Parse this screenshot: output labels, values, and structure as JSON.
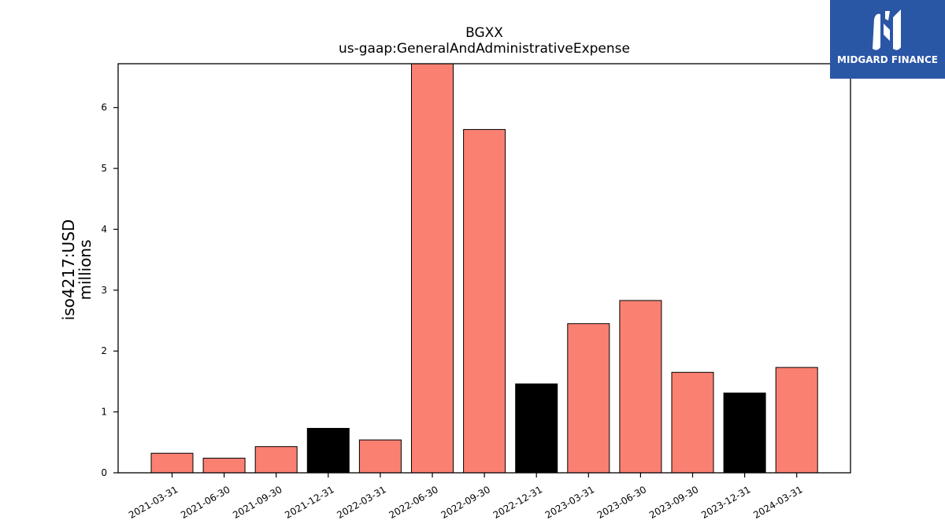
{
  "logo": {
    "text": "MIDGARD FINANCE"
  },
  "colors": {
    "default": "#fa8072",
    "highlight": "#000000",
    "axis": "#000000"
  },
  "chart_data": {
    "type": "bar",
    "title": "BGXX",
    "subtitle": "us-gaap:GeneralAndAdministrativeExpense",
    "ylabel": "iso4217:USD",
    "ylabel_unit": "millions",
    "xlabel": "",
    "categories": [
      "2021-03-31",
      "2021-06-30",
      "2021-09-30",
      "2021-12-31",
      "2022-03-31",
      "2022-06-30",
      "2022-09-30",
      "2022-12-31",
      "2023-03-31",
      "2023-06-30",
      "2023-09-30",
      "2023-12-31",
      "2024-03-31"
    ],
    "values": [
      0.32,
      0.24,
      0.43,
      0.73,
      0.54,
      6.75,
      5.64,
      1.46,
      2.45,
      2.83,
      1.65,
      1.31,
      1.73
    ],
    "highlight": [
      false,
      false,
      false,
      true,
      false,
      false,
      false,
      true,
      false,
      false,
      false,
      true,
      false
    ],
    "ylim": [
      0,
      6.72
    ],
    "yticks": [
      0,
      1,
      2,
      3,
      4,
      5,
      6
    ],
    "grid": false,
    "legend": "none"
  }
}
